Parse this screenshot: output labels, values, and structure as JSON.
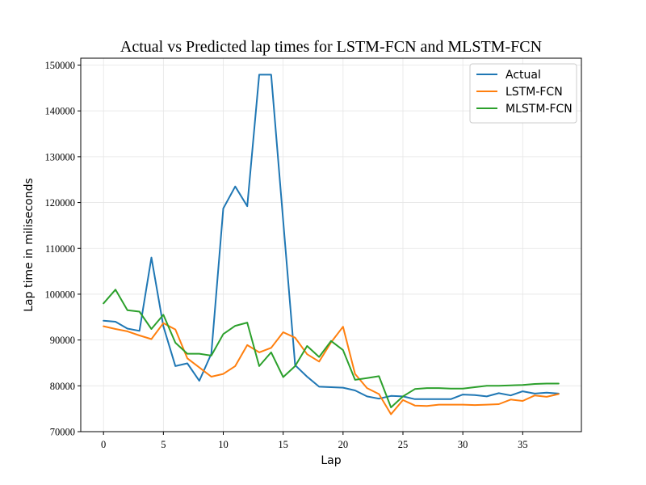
{
  "chart_data": {
    "type": "line",
    "title": "Actual vs Predicted lap times for LSTM-FCN and MLSTM-FCN",
    "xlabel": "Lap",
    "ylabel": "Lap time in miliseconds",
    "xlim": [
      -1.9,
      39.9
    ],
    "ylim": [
      70000,
      151500
    ],
    "xticks": [
      0,
      5,
      10,
      15,
      20,
      25,
      30,
      35
    ],
    "yticks": [
      70000,
      80000,
      90000,
      100000,
      110000,
      120000,
      130000,
      140000,
      150000
    ],
    "grid": true,
    "legend_position": "top-right",
    "x": [
      0,
      1,
      2,
      3,
      4,
      5,
      6,
      7,
      8,
      9,
      10,
      11,
      12,
      13,
      14,
      15,
      16,
      17,
      18,
      19,
      20,
      21,
      22,
      23,
      24,
      25,
      26,
      27,
      28,
      29,
      30,
      31,
      32,
      33,
      34,
      35,
      36,
      37,
      38
    ],
    "series": [
      {
        "name": "Actual",
        "color": "#1f77b4",
        "values": [
          94200,
          94000,
          92500,
          92000,
          108000,
          93000,
          84300,
          84900,
          81100,
          87000,
          118700,
          123500,
          119200,
          147900,
          147900,
          116000,
          84500,
          82000,
          79800,
          79700,
          79600,
          79000,
          77700,
          77200,
          77800,
          77700,
          77100,
          77100,
          77100,
          77100,
          78100,
          78000,
          77700,
          78400,
          77900,
          78800,
          78300,
          78500,
          78300
        ]
      },
      {
        "name": "LSTM-FCN",
        "color": "#ff7f0e",
        "values": [
          93000,
          92400,
          91900,
          91000,
          90200,
          93700,
          92300,
          86000,
          84000,
          82000,
          82600,
          84300,
          88900,
          87300,
          88300,
          91700,
          90500,
          86900,
          85300,
          89500,
          92900,
          82600,
          79500,
          78200,
          73800,
          76900,
          75700,
          75600,
          75900,
          75900,
          75900,
          75800,
          75900,
          76000,
          77000,
          76700,
          77900,
          77600,
          78200
        ]
      },
      {
        "name": "MLSTM-FCN",
        "color": "#2ca02c",
        "values": [
          98000,
          101000,
          96500,
          96200,
          92400,
          95500,
          89400,
          87000,
          87000,
          86600,
          91300,
          93100,
          93800,
          84300,
          87300,
          81900,
          84300,
          88700,
          86300,
          89800,
          87800,
          81300,
          81700,
          82100,
          75300,
          77700,
          79300,
          79500,
          79500,
          79400,
          79400,
          79700,
          80000,
          80000,
          80100,
          80200,
          80400,
          80500,
          80500
        ]
      }
    ]
  }
}
